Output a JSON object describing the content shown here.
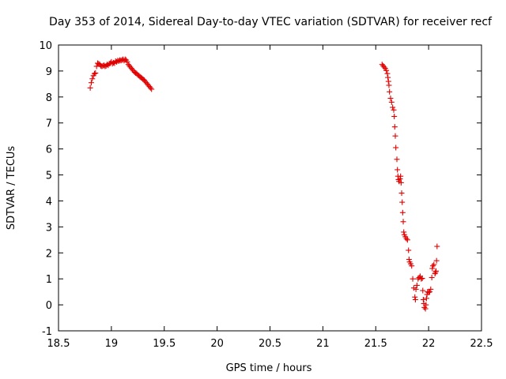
{
  "chart_data": {
    "type": "scatter",
    "title": "Day 353 of 2014, Sidereal Day-to-day VTEC variation (SDTVAR) for receiver recf",
    "xlabel": "GPS time / hours",
    "ylabel": "SDTVAR / TECUs",
    "xlim": [
      18.5,
      22.5
    ],
    "ylim": [
      -1,
      10
    ],
    "xticks": [
      "18.5",
      "19",
      "19.5",
      "20",
      "20.5",
      "21",
      "21.5",
      "22",
      "22.5"
    ],
    "yticks": [
      "-1",
      "0",
      "1",
      "2",
      "3",
      "4",
      "5",
      "6",
      "7",
      "8",
      "9",
      "10"
    ],
    "grid": false,
    "marker": "+",
    "series": [
      {
        "name": "SDTVAR",
        "color": "#e00000",
        "points": [
          [
            18.8,
            8.35
          ],
          [
            18.81,
            8.55
          ],
          [
            18.82,
            8.7
          ],
          [
            18.83,
            8.82
          ],
          [
            18.84,
            8.9
          ],
          [
            18.85,
            8.92
          ],
          [
            18.86,
            9.18
          ],
          [
            18.87,
            9.3
          ],
          [
            18.88,
            9.28
          ],
          [
            18.89,
            9.25
          ],
          [
            18.9,
            9.2
          ],
          [
            18.91,
            9.18
          ],
          [
            18.92,
            9.2
          ],
          [
            18.93,
            9.22
          ],
          [
            18.94,
            9.18
          ],
          [
            18.95,
            9.2
          ],
          [
            18.96,
            9.25
          ],
          [
            18.97,
            9.22
          ],
          [
            18.98,
            9.28
          ],
          [
            18.99,
            9.3
          ],
          [
            19.0,
            9.35
          ],
          [
            19.01,
            9.28
          ],
          [
            19.02,
            9.32
          ],
          [
            19.03,
            9.3
          ],
          [
            19.04,
            9.38
          ],
          [
            19.05,
            9.35
          ],
          [
            19.06,
            9.4
          ],
          [
            19.07,
            9.38
          ],
          [
            19.08,
            9.42
          ],
          [
            19.09,
            9.4
          ],
          [
            19.1,
            9.42
          ],
          [
            19.11,
            9.45
          ],
          [
            19.12,
            9.4
          ],
          [
            19.13,
            9.45
          ],
          [
            19.14,
            9.42
          ],
          [
            19.15,
            9.35
          ],
          [
            19.16,
            9.25
          ],
          [
            19.17,
            9.2
          ],
          [
            19.18,
            9.15
          ],
          [
            19.19,
            9.1
          ],
          [
            19.2,
            9.05
          ],
          [
            19.21,
            9.0
          ],
          [
            19.22,
            8.95
          ],
          [
            19.23,
            8.92
          ],
          [
            19.24,
            8.9
          ],
          [
            19.25,
            8.85
          ],
          [
            19.26,
            8.82
          ],
          [
            19.27,
            8.78
          ],
          [
            19.28,
            8.75
          ],
          [
            19.29,
            8.72
          ],
          [
            19.3,
            8.68
          ],
          [
            19.31,
            8.65
          ],
          [
            19.32,
            8.6
          ],
          [
            19.33,
            8.55
          ],
          [
            19.34,
            8.5
          ],
          [
            19.35,
            8.45
          ],
          [
            19.36,
            8.4
          ],
          [
            19.37,
            8.35
          ],
          [
            19.38,
            8.3
          ],
          [
            21.56,
            9.25
          ],
          [
            21.57,
            9.2
          ],
          [
            21.58,
            9.15
          ],
          [
            21.59,
            9.1
          ],
          [
            21.6,
            9.02
          ],
          [
            21.61,
            8.9
          ],
          [
            21.615,
            8.75
          ],
          [
            21.62,
            8.6
          ],
          [
            21.625,
            8.45
          ],
          [
            21.63,
            8.2
          ],
          [
            21.64,
            7.95
          ],
          [
            21.65,
            7.8
          ],
          [
            21.66,
            7.6
          ],
          [
            21.67,
            7.5
          ],
          [
            21.675,
            7.25
          ],
          [
            21.68,
            6.85
          ],
          [
            21.685,
            6.5
          ],
          [
            21.69,
            6.05
          ],
          [
            21.7,
            5.6
          ],
          [
            21.705,
            5.2
          ],
          [
            21.71,
            4.95
          ],
          [
            21.715,
            4.82
          ],
          [
            21.72,
            4.75
          ],
          [
            21.73,
            4.85
          ],
          [
            21.735,
            4.95
          ],
          [
            21.74,
            4.7
          ],
          [
            21.745,
            4.3
          ],
          [
            21.75,
            3.95
          ],
          [
            21.755,
            3.55
          ],
          [
            21.76,
            3.2
          ],
          [
            21.765,
            2.8
          ],
          [
            21.77,
            2.7
          ],
          [
            21.78,
            2.62
          ],
          [
            21.79,
            2.55
          ],
          [
            21.8,
            2.5
          ],
          [
            21.81,
            2.1
          ],
          [
            21.815,
            1.75
          ],
          [
            21.82,
            1.65
          ],
          [
            21.83,
            1.58
          ],
          [
            21.84,
            1.5
          ],
          [
            21.85,
            1.0
          ],
          [
            21.86,
            0.65
          ],
          [
            21.87,
            0.3
          ],
          [
            21.875,
            0.2
          ],
          [
            21.88,
            0.6
          ],
          [
            21.89,
            0.75
          ],
          [
            21.9,
            1.0
          ],
          [
            21.91,
            1.05
          ],
          [
            21.92,
            1.1
          ],
          [
            21.93,
            1.0
          ],
          [
            21.94,
            1.02
          ],
          [
            21.945,
            0.55
          ],
          [
            21.95,
            0.2
          ],
          [
            21.955,
            0.05
          ],
          [
            21.96,
            -0.1
          ],
          [
            21.97,
            -0.15
          ],
          [
            21.975,
            0.0
          ],
          [
            21.98,
            0.25
          ],
          [
            21.985,
            0.4
          ],
          [
            21.99,
            0.5
          ],
          [
            22.0,
            0.48
          ],
          [
            22.01,
            0.5
          ],
          [
            22.02,
            0.6
          ],
          [
            22.03,
            1.05
          ],
          [
            22.035,
            1.4
          ],
          [
            22.04,
            1.5
          ],
          [
            22.05,
            1.55
          ],
          [
            22.06,
            1.2
          ],
          [
            22.065,
            1.25
          ],
          [
            22.07,
            1.3
          ],
          [
            22.075,
            1.7
          ],
          [
            22.08,
            2.25
          ]
        ]
      }
    ]
  }
}
